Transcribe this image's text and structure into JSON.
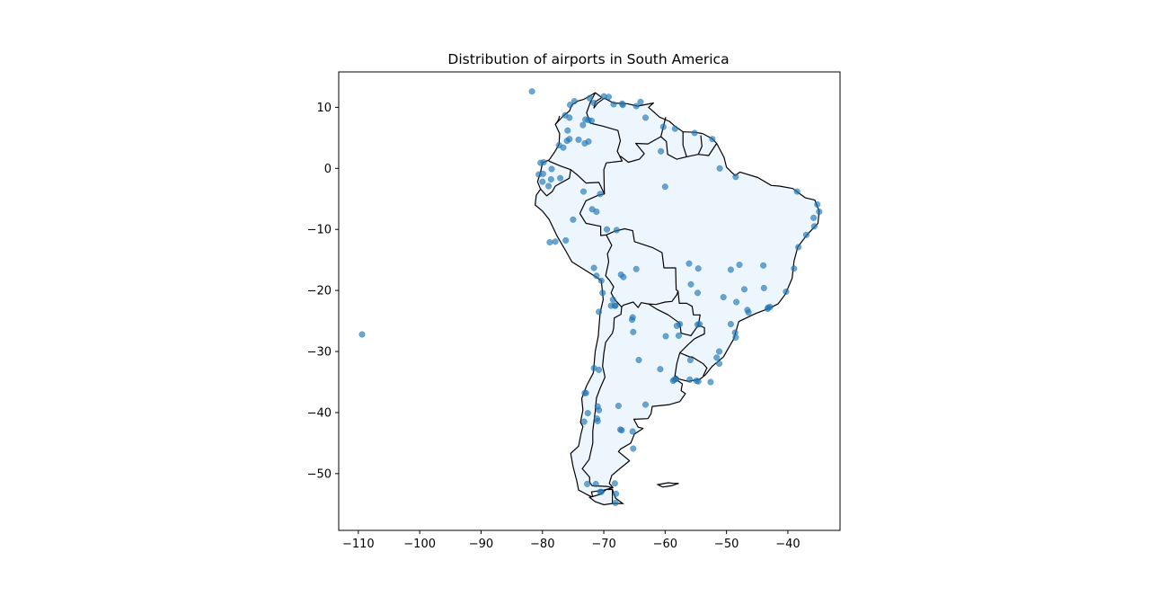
{
  "chart_data": {
    "type": "scatter",
    "title": "Distribution of airports in South America",
    "xlabel": "",
    "ylabel": "",
    "xlim": [
      -113.2,
      -31.5
    ],
    "ylim": [
      -59.3,
      15.8
    ],
    "x_ticks": [
      -110,
      -100,
      -90,
      -80,
      -70,
      -60,
      -50,
      -40
    ],
    "y_ticks": [
      10,
      0,
      -10,
      -20,
      -30,
      -40,
      -50
    ],
    "x_tick_labels": [
      "−110",
      "−100",
      "−90",
      "−80",
      "−70",
      "−60",
      "−50",
      "−40"
    ],
    "y_tick_labels": [
      "10",
      "0",
      "−10",
      "−20",
      "−30",
      "−40",
      "−50"
    ],
    "grid": false,
    "colors": {
      "marker": "#1f77b4",
      "land_fill": "#eef6fd",
      "border": "#000000"
    },
    "series": [
      {
        "x": [
          -81.7,
          -72.3,
          -71.6,
          -70.0,
          -69.2,
          -68.4,
          -67.0,
          -64.7,
          -64.0,
          -66.9,
          -63.2,
          -60.3,
          -58.4,
          -55.2,
          -52.3,
          -74.8,
          -75.5,
          -76.3,
          -75.6,
          -73.0,
          -72.5,
          -72.0,
          -73.4,
          -75.9,
          -75.6,
          -74.1,
          -72.5,
          -73.1,
          -76.0,
          -77.3,
          -76.6,
          -79.8,
          -80.3,
          -79.9,
          -78.5,
          -80.0,
          -78.6,
          -80.6,
          -79.0,
          -77.1,
          -73.3,
          -70.6,
          -71.9,
          -75.0,
          -69.5,
          -67.9,
          -60.0,
          -60.7,
          -51.1,
          -48.5,
          -38.5,
          -35.2,
          -34.9,
          -35.8,
          -35.7,
          -37.0,
          -38.3,
          -39.0,
          -40.3,
          -43.2,
          -43.3,
          -42.9,
          -46.4,
          -46.6,
          -47.1,
          -43.9,
          -44.0,
          -47.9,
          -49.3,
          -49.3,
          -48.6,
          -48.5,
          -51.2,
          -50.5,
          -48.4,
          -54.7,
          -54.6,
          -56.1,
          -55.8,
          -57.6,
          -58.1,
          -51.2,
          -51.6,
          -54.4,
          -54.7,
          -54.6,
          -52.6,
          -54.9,
          -56.0,
          -58.2,
          -58.5,
          -58.7,
          -55.9,
          -57.8,
          -59.9,
          -60.8,
          -64.3,
          -65.2,
          -65.4,
          -65.3,
          -68.5,
          -68.8,
          -68.2,
          -71.2,
          -71.6,
          -70.4,
          -70.2,
          -70.8,
          -72.9,
          -73.1,
          -70.8,
          -71.0,
          -73.2,
          -72.6,
          -71.1,
          -71.0,
          -67.6,
          -67.1,
          -65.3,
          -65.2,
          -68.2,
          -70.4,
          -68.1,
          -68.0,
          -67.3,
          -63.2,
          -64.7,
          -67.2,
          -66.8,
          -68.1,
          -70.8,
          -71.6,
          -76.2,
          -78.8,
          -77.9,
          -71.2,
          -109.4,
          -72.7,
          -71.3,
          -70.6
        ],
        "y": [
          12.6,
          11.5,
          10.7,
          11.8,
          11.7,
          10.5,
          10.6,
          10.2,
          10.9,
          10.4,
          8.3,
          6.8,
          6.5,
          5.8,
          4.8,
          11.0,
          10.4,
          8.7,
          8.3,
          8.0,
          7.9,
          7.8,
          7.1,
          6.2,
          4.8,
          4.7,
          4.4,
          4.1,
          4.5,
          3.8,
          3.4,
          1.0,
          0.9,
          -0.9,
          -0.1,
          -2.2,
          -1.8,
          -1.0,
          -2.9,
          -1.6,
          -3.8,
          -4.2,
          -6.7,
          -8.4,
          -10.0,
          -10.1,
          -3.0,
          2.8,
          0.0,
          -1.4,
          -3.8,
          -5.9,
          -7.1,
          -8.1,
          -9.5,
          -10.9,
          -12.9,
          -16.4,
          -20.2,
          -22.8,
          -23.0,
          -22.7,
          -23.6,
          -23.2,
          -19.8,
          -19.6,
          -15.9,
          -15.8,
          -16.6,
          -25.5,
          -26.9,
          -27.7,
          -30.0,
          -21.1,
          -21.9,
          -20.4,
          -16.4,
          -15.6,
          -19.0,
          -25.5,
          -25.8,
          -32.0,
          -31.0,
          -25.5,
          -25.6,
          -34.9,
          -35.0,
          -34.8,
          -34.6,
          -34.5,
          -34.6,
          -34.8,
          -31.4,
          -27.4,
          -27.5,
          -32.9,
          -31.4,
          -26.8,
          -24.8,
          -24.4,
          -21.5,
          -22.5,
          -22.5,
          -17.6,
          -16.3,
          -18.4,
          -20.4,
          -23.5,
          -36.8,
          -36.8,
          -39.6,
          -41.4,
          -41.5,
          -40.1,
          -41.0,
          -39.0,
          -38.9,
          -42.9,
          -43.1,
          -45.9,
          -51.6,
          -53.0,
          -54.8,
          -53.3,
          -42.8,
          -38.7,
          -16.5,
          -17.4,
          -17.8,
          -22.5,
          -33.0,
          -32.7,
          -11.8,
          -12.1,
          -12.0,
          -7.1,
          -27.2,
          -51.7,
          -51.7,
          -53.0
        ],
        "marker_size": 6
      }
    ]
  }
}
